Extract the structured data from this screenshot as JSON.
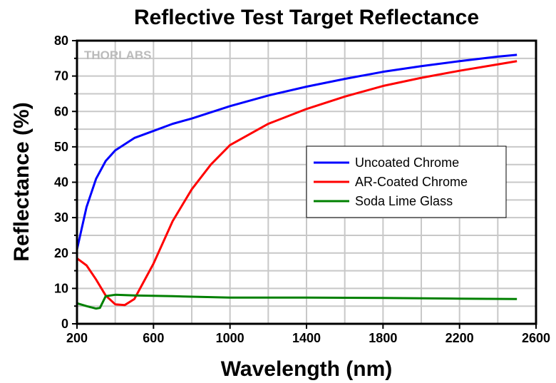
{
  "chart_data": {
    "type": "line",
    "title": "Reflective Test Target Reflectance",
    "xlabel": "Wavelength (nm)",
    "ylabel": "Reflectance (%)",
    "xlim": [
      200,
      2600
    ],
    "ylim": [
      0,
      80
    ],
    "xticks": [
      200,
      600,
      1000,
      1400,
      1800,
      2200,
      2600
    ],
    "yticks": [
      0,
      10,
      20,
      30,
      40,
      50,
      60,
      70,
      80
    ],
    "grid": true,
    "legend_position": "center-right",
    "watermark": "THORLABS",
    "series": [
      {
        "name": "Uncoated Chrome",
        "color": "#0000ff",
        "x": [
          200,
          250,
          300,
          350,
          400,
          500,
          600,
          700,
          800,
          1000,
          1200,
          1400,
          1600,
          1800,
          2000,
          2200,
          2400,
          2500
        ],
        "y": [
          21,
          33,
          41,
          46,
          49,
          52.5,
          54.5,
          56.5,
          58,
          61.5,
          64.5,
          67,
          69.2,
          71.2,
          72.8,
          74.2,
          75.5,
          76
        ]
      },
      {
        "name": "AR-Coated Chrome",
        "color": "#ff0000",
        "x": [
          200,
          250,
          300,
          350,
          400,
          450,
          500,
          600,
          700,
          800,
          900,
          1000,
          1200,
          1400,
          1600,
          1800,
          2000,
          2200,
          2400,
          2500
        ],
        "y": [
          18.5,
          16.5,
          12.5,
          8,
          5.5,
          5.3,
          7,
          17,
          29,
          38,
          45,
          50.5,
          56.5,
          60.7,
          64.2,
          67.2,
          69.5,
          71.5,
          73.3,
          74.2
        ]
      },
      {
        "name": "Soda Lime Glass",
        "color": "#008000",
        "x": [
          200,
          250,
          300,
          320,
          350,
          400,
          500,
          700,
          1000,
          1400,
          1800,
          2200,
          2500
        ],
        "y": [
          5.8,
          5,
          4.3,
          4.5,
          7.8,
          8.2,
          8,
          7.8,
          7.4,
          7.4,
          7.3,
          7.1,
          7.0
        ]
      }
    ]
  }
}
